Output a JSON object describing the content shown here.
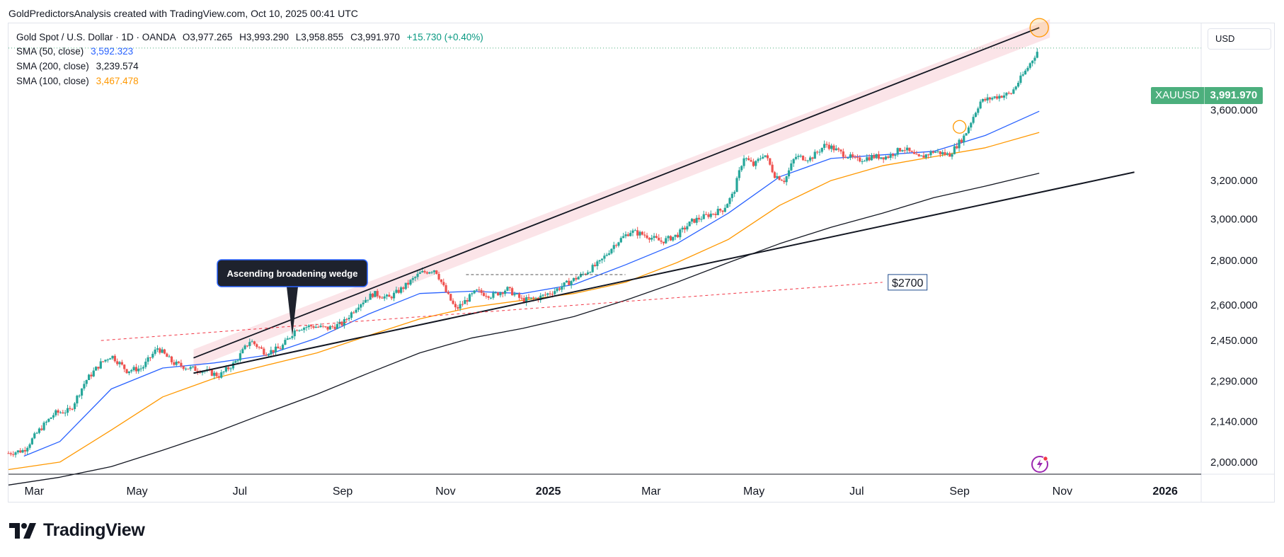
{
  "caption": "GoldPredictorsAnalysis created with TradingView.com, Oct 10, 2025 00:41 UTC",
  "legend": {
    "title": "Gold Spot / U.S. Dollar · 1D · OANDA",
    "open": "O3,977.265",
    "high": "H3,993.290",
    "low": "L3,958.855",
    "close": "C3,991.970",
    "change": "+15.730 (+0.40%)",
    "sma50_label": "SMA (50, close)",
    "sma50_value": "3,592.323",
    "sma200_label": "SMA (200, close)",
    "sma200_value": "3,239.574",
    "sma100_label": "SMA (100, close)",
    "sma100_value": "3,467.478"
  },
  "currency": "USD",
  "price_tag": {
    "symbol": "XAUUSD",
    "value": "3,991.970"
  },
  "brand": "TradingView",
  "icons": [
    "tradingview-logo-icon",
    "flash-icon"
  ],
  "colors": {
    "up": "#26a69a",
    "down": "#ef5350",
    "sma50": "#2962ff",
    "sma100": "#ff9800",
    "sma200": "#131722",
    "price_tag": "#4caf7d",
    "channel": "#fadbe0",
    "dashed": "#f23645"
  },
  "chart_data": {
    "type": "candlestick",
    "title": "Gold Spot / U.S. Dollar · 1D · OANDA",
    "y_scale": "log",
    "y_range": [
      1960,
      4160
    ],
    "y_ticks": [
      2000,
      2140,
      2290,
      2450,
      2600,
      2800,
      3000,
      3200,
      3600
    ],
    "y_tick_labels": [
      "2,000.000",
      "2,140.000",
      "2,290.000",
      "2,450.000",
      "2,600.000",
      "2,800.000",
      "3,000.000",
      "3,200.000",
      "3,600.000"
    ],
    "x_range_months": [
      0,
      23.2
    ],
    "x_ticks": [
      {
        "label": "Mar",
        "m": 0.5
      },
      {
        "label": "May",
        "m": 2.5
      },
      {
        "label": "Jul",
        "m": 4.5
      },
      {
        "label": "Sep",
        "m": 6.5
      },
      {
        "label": "Nov",
        "m": 8.5
      },
      {
        "label": "2025",
        "m": 10.5
      },
      {
        "label": "Mar",
        "m": 12.5
      },
      {
        "label": "May",
        "m": 14.5
      },
      {
        "label": "Jul",
        "m": 16.5
      },
      {
        "label": "Sep",
        "m": 18.5
      },
      {
        "label": "Nov",
        "m": 20.5
      },
      {
        "label": "2026",
        "m": 22.5
      }
    ],
    "last_price": 3991.97,
    "price_path": [
      [
        0,
        2030
      ],
      [
        0.3,
        2040
      ],
      [
        0.6,
        2110
      ],
      [
        0.9,
        2170
      ],
      [
        1.2,
        2180
      ],
      [
        1.5,
        2290
      ],
      [
        1.8,
        2360
      ],
      [
        2.0,
        2390
      ],
      [
        2.3,
        2330
      ],
      [
        2.6,
        2340
      ],
      [
        2.9,
        2420
      ],
      [
        3.2,
        2360
      ],
      [
        3.5,
        2340
      ],
      [
        3.8,
        2330
      ],
      [
        4.1,
        2310
      ],
      [
        4.4,
        2360
      ],
      [
        4.7,
        2450
      ],
      [
        5.0,
        2400
      ],
      [
        5.3,
        2420
      ],
      [
        5.6,
        2500
      ],
      [
        5.9,
        2510
      ],
      [
        6.2,
        2500
      ],
      [
        6.5,
        2520
      ],
      [
        6.8,
        2600
      ],
      [
        7.1,
        2650
      ],
      [
        7.4,
        2630
      ],
      [
        7.7,
        2680
      ],
      [
        8.0,
        2740
      ],
      [
        8.3,
        2760
      ],
      [
        8.5,
        2660
      ],
      [
        8.7,
        2580
      ],
      [
        8.9,
        2620
      ],
      [
        9.1,
        2660
      ],
      [
        9.4,
        2640
      ],
      [
        9.7,
        2670
      ],
      [
        10.0,
        2620
      ],
      [
        10.3,
        2630
      ],
      [
        10.6,
        2660
      ],
      [
        10.9,
        2700
      ],
      [
        11.2,
        2740
      ],
      [
        11.5,
        2790
      ],
      [
        11.8,
        2880
      ],
      [
        12.1,
        2940
      ],
      [
        12.4,
        2920
      ],
      [
        12.7,
        2890
      ],
      [
        13.0,
        2920
      ],
      [
        13.3,
        2990
      ],
      [
        13.6,
        3020
      ],
      [
        13.9,
        3050
      ],
      [
        14.1,
        3130
      ],
      [
        14.3,
        3330
      ],
      [
        14.5,
        3280
      ],
      [
        14.7,
        3350
      ],
      [
        14.9,
        3230
      ],
      [
        15.1,
        3200
      ],
      [
        15.3,
        3330
      ],
      [
        15.6,
        3320
      ],
      [
        15.9,
        3400
      ],
      [
        16.2,
        3350
      ],
      [
        16.5,
        3310
      ],
      [
        16.8,
        3330
      ],
      [
        17.1,
        3330
      ],
      [
        17.4,
        3380
      ],
      [
        17.7,
        3320
      ],
      [
        18.0,
        3360
      ],
      [
        18.3,
        3340
      ],
      [
        18.6,
        3450
      ],
      [
        18.9,
        3650
      ],
      [
        19.2,
        3680
      ],
      [
        19.5,
        3700
      ],
      [
        19.8,
        3850
      ],
      [
        20.05,
        3991.97
      ]
    ],
    "sma50": [
      [
        0.3,
        2020
      ],
      [
        1.0,
        2070
      ],
      [
        2.0,
        2260
      ],
      [
        3.0,
        2340
      ],
      [
        4.0,
        2360
      ],
      [
        5.0,
        2390
      ],
      [
        6.0,
        2460
      ],
      [
        7.0,
        2560
      ],
      [
        8.0,
        2650
      ],
      [
        9.0,
        2660
      ],
      [
        10.0,
        2650
      ],
      [
        11.0,
        2690
      ],
      [
        12.0,
        2780
      ],
      [
        13.0,
        2880
      ],
      [
        14.0,
        3030
      ],
      [
        15.0,
        3220
      ],
      [
        16.0,
        3320
      ],
      [
        17.0,
        3340
      ],
      [
        18.0,
        3360
      ],
      [
        19.0,
        3450
      ],
      [
        20.05,
        3592.323
      ]
    ],
    "sma100": [
      [
        0,
        1975
      ],
      [
        1.0,
        2000
      ],
      [
        2.0,
        2110
      ],
      [
        3.0,
        2230
      ],
      [
        4.0,
        2300
      ],
      [
        5.0,
        2350
      ],
      [
        6.0,
        2400
      ],
      [
        7.0,
        2470
      ],
      [
        8.0,
        2540
      ],
      [
        9.0,
        2590
      ],
      [
        10.0,
        2620
      ],
      [
        11.0,
        2650
      ],
      [
        12.0,
        2700
      ],
      [
        13.0,
        2790
      ],
      [
        14.0,
        2900
      ],
      [
        15.0,
        3070
      ],
      [
        16.0,
        3200
      ],
      [
        17.0,
        3280
      ],
      [
        18.0,
        3330
      ],
      [
        19.0,
        3380
      ],
      [
        20.05,
        3467.478
      ]
    ],
    "sma200": [
      [
        0,
        1925
      ],
      [
        1.0,
        1950
      ],
      [
        2.0,
        1985
      ],
      [
        3.0,
        2040
      ],
      [
        4.0,
        2100
      ],
      [
        5.0,
        2170
      ],
      [
        6.0,
        2240
      ],
      [
        7.0,
        2320
      ],
      [
        8.0,
        2400
      ],
      [
        9.0,
        2460
      ],
      [
        10.0,
        2500
      ],
      [
        11.0,
        2550
      ],
      [
        12.0,
        2620
      ],
      [
        13.0,
        2700
      ],
      [
        14.0,
        2790
      ],
      [
        15.0,
        2880
      ],
      [
        16.0,
        2960
      ],
      [
        17.0,
        3030
      ],
      [
        18.0,
        3110
      ],
      [
        19.0,
        3170
      ],
      [
        20.05,
        3239.574
      ]
    ],
    "annotations": {
      "callout_text": "Ascending broadening wedge",
      "level_label": "$2700",
      "upper_trendline": [
        [
          3.6,
          2380
        ],
        [
          20.05,
          4130
        ]
      ],
      "lower_trendline": [
        [
          3.6,
          2320
        ],
        [
          21.9,
          3245
        ]
      ],
      "dashed_resistance": [
        [
          1.8,
          2450
        ],
        [
          17.0,
          2700
        ]
      ],
      "dashed_neckline": [
        [
          8.9,
          2735
        ],
        [
          12.0,
          2735
        ]
      ],
      "circles": [
        [
          20.05,
          4130
        ],
        [
          18.5,
          3500
        ]
      ]
    }
  }
}
